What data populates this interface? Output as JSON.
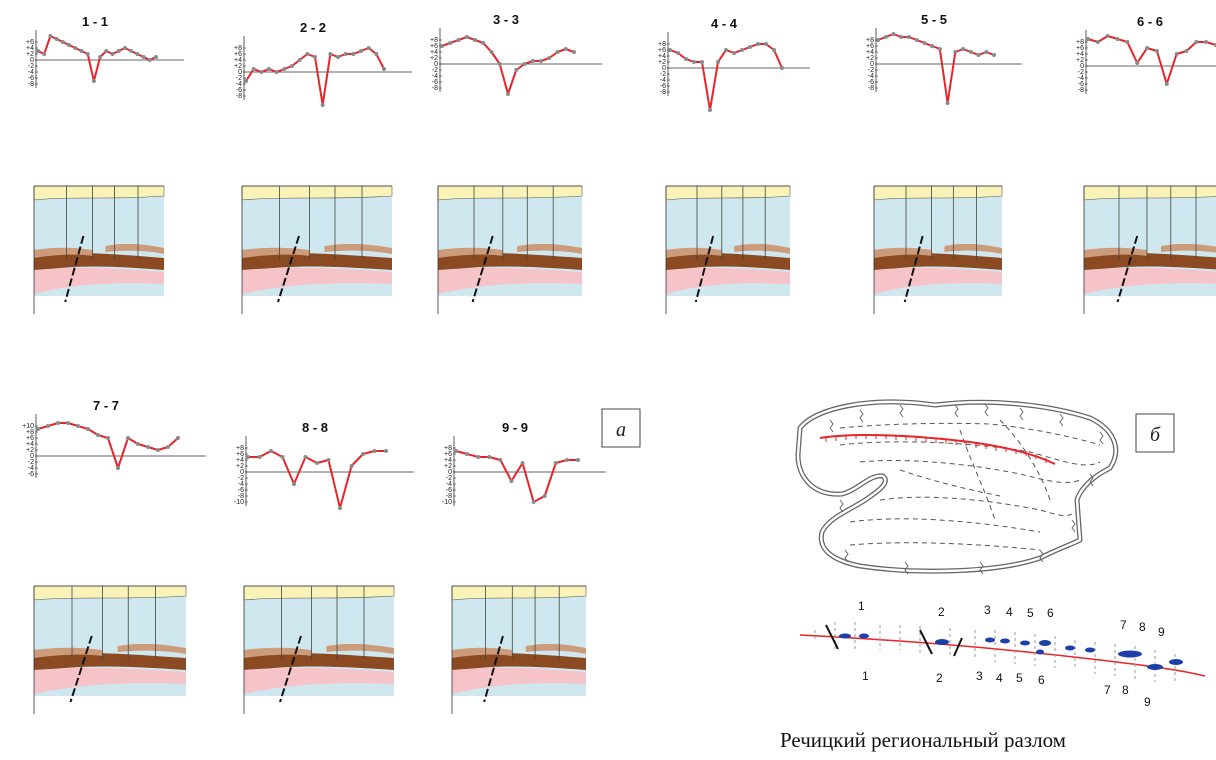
{
  "profiles": [
    {
      "title": "1 - 1",
      "ticks": [
        "+6",
        "+4",
        "+2",
        "0",
        "-2",
        "-4",
        "-6",
        "-8"
      ],
      "values": [
        3,
        2,
        8,
        7,
        6,
        5,
        4,
        3,
        2,
        -7,
        1,
        3,
        2,
        3,
        4,
        3,
        2,
        1,
        0,
        1
      ]
    },
    {
      "title": "2 - 2",
      "ticks": [
        "+8",
        "+6",
        "+4",
        "+2",
        "0",
        "-2",
        "-4",
        "-6",
        "-8"
      ],
      "values": [
        -3,
        1,
        0,
        1,
        0,
        1,
        2,
        4,
        6,
        5,
        -11,
        6,
        5,
        6,
        6,
        7,
        8,
        6,
        1
      ]
    },
    {
      "title": "3 - 3",
      "ticks": [
        "+8",
        "+6",
        "+4",
        "+2",
        "0",
        "-2",
        "-4",
        "-6",
        "-8"
      ],
      "values": [
        6,
        7,
        8,
        9,
        8,
        7,
        4,
        0,
        -10,
        -2,
        0,
        1,
        1,
        2,
        4,
        5,
        4
      ]
    },
    {
      "title": "4 - 4",
      "ticks": [
        "+8",
        "+6",
        "+4",
        "+2",
        "0",
        "-2",
        "-4",
        "-6",
        "-8"
      ],
      "values": [
        6,
        5,
        3,
        2,
        2,
        -14,
        2,
        6,
        5,
        6,
        7,
        8,
        8,
        6,
        0
      ]
    },
    {
      "title": "5 - 5",
      "ticks": [
        "+8",
        "+6",
        "+4",
        "+2",
        "0",
        "-2",
        "-4",
        "-6",
        "-8"
      ],
      "values": [
        8,
        9,
        10,
        9,
        9,
        8,
        7,
        6,
        5,
        -13,
        4,
        5,
        4,
        3,
        4,
        3
      ]
    },
    {
      "title": "6 - 6",
      "ticks": [
        "+8",
        "+6",
        "+4",
        "+2",
        "0",
        "-2",
        "-4",
        "-6",
        "-8"
      ],
      "values": [
        9,
        8,
        10,
        9,
        8,
        1,
        6,
        5,
        -6,
        4,
        5,
        8,
        8,
        7
      ]
    },
    {
      "title": "7 - 7",
      "ticks": [
        "+10",
        "+8",
        "+6",
        "+4",
        "+2",
        "0",
        "-2",
        "-4",
        "-6"
      ],
      "values": [
        9,
        10,
        11,
        11,
        10,
        9,
        7,
        6,
        -4,
        6,
        4,
        3,
        2,
        3,
        6
      ]
    },
    {
      "title": "8 - 8",
      "ticks": [
        "+8",
        "+6",
        "+4",
        "+2",
        "0",
        "-2",
        "-4",
        "-6",
        "-8",
        "-10"
      ],
      "values": [
        5,
        5,
        7,
        5,
        -4,
        5,
        3,
        4,
        -12,
        2,
        6,
        7,
        7
      ]
    },
    {
      "title": "9 - 9",
      "ticks": [
        "+8",
        "+6",
        "+4",
        "+2",
        "0",
        "-2",
        "-4",
        "-6",
        "-8",
        "-10"
      ],
      "values": [
        7,
        6,
        5,
        5,
        4,
        -3,
        3,
        -10,
        -8,
        3,
        4,
        4
      ]
    }
  ],
  "panel_a_label": "а",
  "panel_b_label": "б",
  "fault_numbers_top": [
    "1",
    "2",
    "3",
    "4",
    "5",
    "6",
    "7",
    "8",
    "9"
  ],
  "fault_numbers_bottom": [
    "1",
    "2",
    "3",
    "4",
    "5",
    "6",
    "7",
    "8",
    "9"
  ],
  "caption": "Речицкий региональный разлом",
  "colors": {
    "curve": "#e8242a",
    "marker": "#8a8a8a",
    "surface": "#faf3b8",
    "water_layer": "#cfe8f0",
    "dark_layer": "#8b4a22",
    "light_layer": "#cc9b7a",
    "pink_layer": "#f6c4c8",
    "fault_line": "#111111",
    "fault_mark": "#1d3fa8",
    "scarp": "#e8242a"
  }
}
